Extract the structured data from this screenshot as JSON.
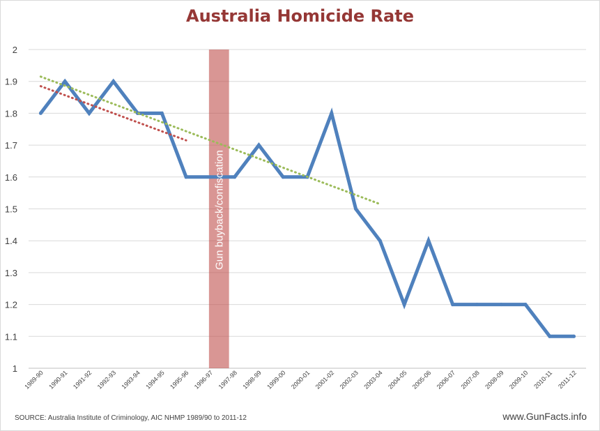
{
  "chart_data": {
    "type": "line",
    "title": "Australia Homicide Rate",
    "categories": [
      "1989-90",
      "1990-91",
      "1991-92",
      "1992-93",
      "1993-94",
      "1994-95",
      "1995-96",
      "1996-97",
      "1997-98",
      "1998-99",
      "1999-00",
      "2000-01",
      "2001-02",
      "2002-03",
      "2003-04",
      "2004-05",
      "2005-06",
      "2006-07",
      "2007-08",
      "2008-09",
      "2009-10",
      "2010-11",
      "2011-12"
    ],
    "series": [
      {
        "values": [
          1.8,
          1.9,
          1.8,
          1.9,
          1.8,
          1.8,
          1.6,
          1.6,
          1.6,
          1.7,
          1.6,
          1.6,
          1.8,
          1.5,
          1.4,
          1.2,
          1.4,
          1.2,
          1.2,
          1.2,
          1.2,
          1.1,
          1.1
        ],
        "color": "#4f81bd"
      }
    ],
    "trendlines": [
      {
        "color": "#c0504d",
        "from_category": "1989-90",
        "to_category": "1995-96",
        "start_value": 1.885,
        "end_value": 1.715
      },
      {
        "color": "#9bbb59",
        "from_category": "1989-90",
        "to_category": "2003-04",
        "start_value": 1.915,
        "end_value": 1.515
      }
    ],
    "annotation": {
      "text": "Gun buyback/confiscation",
      "from_category": "1996-97",
      "to_category": "1997-98",
      "color": "#c0504d"
    },
    "yticks": [
      1,
      1.1,
      1.2,
      1.3,
      1.4,
      1.5,
      1.6,
      1.7,
      1.8,
      1.9,
      2
    ],
    "ylim": [
      1,
      2
    ],
    "grid": true,
    "source": "SOURCE:  Australia Institute of Criminology, AIC NHMP  1989/90 to 2011-12",
    "website": "www.GunFacts.info"
  }
}
